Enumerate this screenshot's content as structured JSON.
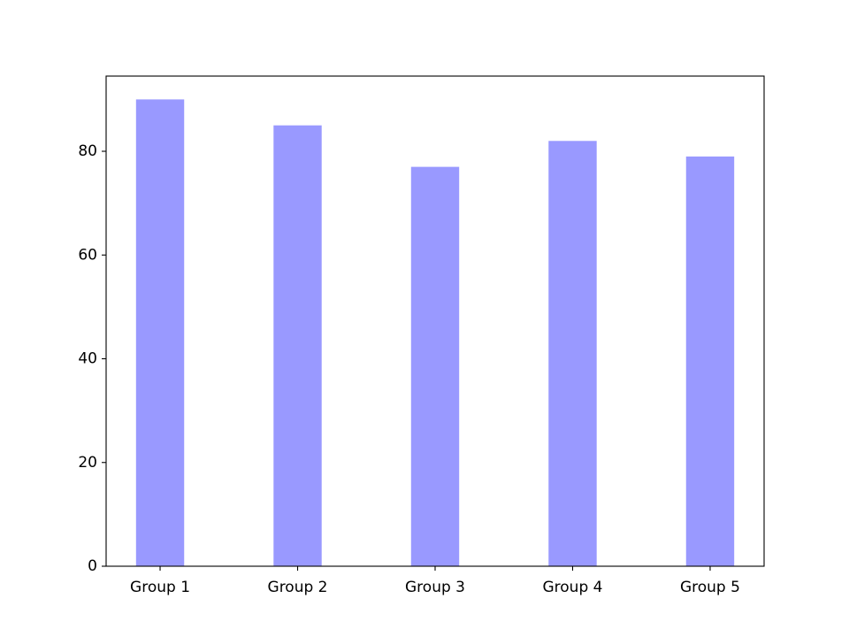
{
  "chart_data": {
    "type": "bar",
    "categories": [
      "Group 1",
      "Group 2",
      "Group 3",
      "Group 4",
      "Group 5"
    ],
    "values": [
      90,
      85,
      77,
      82,
      79
    ],
    "color": "#9999ff",
    "ylim": [
      0,
      94.5
    ],
    "yticks": [
      0,
      20,
      40,
      60,
      80
    ],
    "grid": false
  }
}
